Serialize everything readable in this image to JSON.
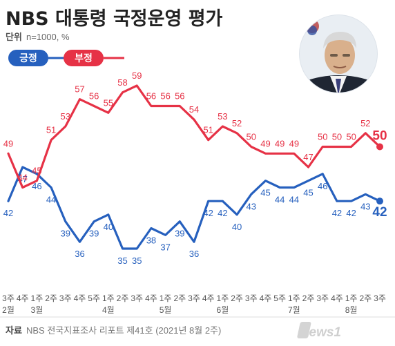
{
  "header": {
    "title": "NBS 대통령 국정운영 평가",
    "unit_label": "단위",
    "unit_text": "n=1000, %"
  },
  "legend": {
    "positive": "긍정",
    "negative": "부정"
  },
  "footer": {
    "source_label": "자료",
    "source_text": "NBS 전국지표조사 리포트 제41호 (2021년 8월 2주)",
    "logo_text": "news1"
  },
  "colors": {
    "positive": "#2660be",
    "negative": "#e63246"
  },
  "chart_data": {
    "type": "line",
    "x": [
      "3주",
      "4주",
      "1주",
      "2주",
      "3주",
      "4주",
      "5주",
      "1주",
      "2주",
      "3주",
      "4주",
      "1주",
      "2주",
      "3주",
      "4주",
      "1주",
      "2주",
      "3주",
      "4주",
      "5주",
      "1주",
      "2주",
      "3주",
      "4주",
      "1주",
      "2주",
      "3주"
    ],
    "months": [
      {
        "label": "2월",
        "index": 0
      },
      {
        "label": "3월",
        "index": 2
      },
      {
        "label": "4월",
        "index": 7
      },
      {
        "label": "5월",
        "index": 11
      },
      {
        "label": "6월",
        "index": 15
      },
      {
        "label": "7월",
        "index": 20
      },
      {
        "label": "8월",
        "index": 24
      }
    ],
    "series": [
      {
        "name": "긍정",
        "key": "positive",
        "values": [
          42,
          47,
          46,
          44,
          39,
          36,
          39,
          40,
          35,
          35,
          38,
          37,
          39,
          36,
          42,
          42,
          40,
          43,
          45,
          44,
          44,
          45,
          46,
          42,
          42,
          43,
          42
        ]
      },
      {
        "name": "부정",
        "key": "negative",
        "values": [
          49,
          44,
          45,
          51,
          53,
          57,
          56,
          55,
          58,
          59,
          56,
          56,
          56,
          54,
          51,
          53,
          52,
          50,
          49,
          49,
          49,
          47,
          50,
          50,
          50,
          52,
          50
        ]
      }
    ],
    "ylim": [
      30,
      62
    ]
  }
}
